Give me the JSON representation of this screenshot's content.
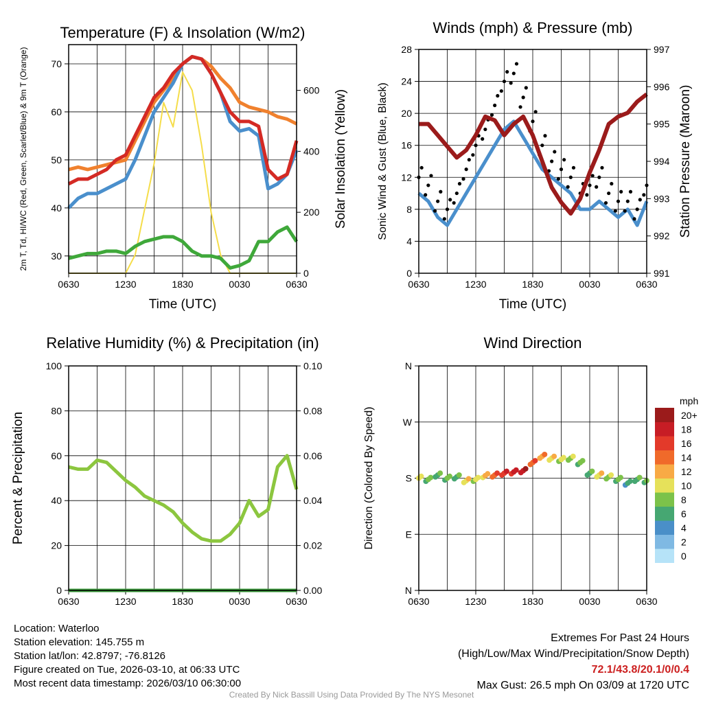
{
  "chart_data": [
    {
      "type": "line",
      "title": "Temperature (F) & Insolation (W/m2)",
      "xlabel": "Time (UTC)",
      "ylabel": "2m T, Td, HI/WC (Red, Green, Scarlet/Blue) & 9m T (Orange)",
      "ylabel2": "Solar Insolation (Yellow)",
      "ylim": [
        26.4,
        74
      ],
      "y2lim": [
        0,
        750
      ],
      "yticks": [
        30,
        40,
        50,
        60,
        70
      ],
      "y2ticks": [
        0,
        200,
        400,
        600
      ],
      "xticks": [
        "0630",
        "1230",
        "1830",
        "0030",
        "0630"
      ],
      "x_hours": [
        0,
        1,
        2,
        3,
        4,
        5,
        6,
        7,
        8,
        9,
        10,
        11,
        12,
        13,
        14,
        15,
        16,
        17,
        18,
        19,
        20,
        21,
        22,
        23,
        24
      ],
      "series": [
        {
          "name": "Solar Insolation",
          "axis": "right",
          "color": "#f5dd4a",
          "values": [
            0,
            0,
            0,
            0,
            0,
            0,
            0,
            60,
            210,
            360,
            560,
            480,
            660,
            600,
            420,
            200,
            60,
            0,
            0,
            0,
            0,
            0,
            0,
            0,
            0
          ]
        },
        {
          "name": "Dewpoint",
          "color": "#3fa83a",
          "values": [
            29.5,
            30,
            30.5,
            30.5,
            31,
            31,
            30.5,
            32,
            33,
            33.5,
            34,
            34,
            33,
            31,
            30,
            30,
            29.5,
            27.5,
            28,
            29,
            33,
            33,
            35,
            36,
            33
          ]
        },
        {
          "name": "9m Temperature",
          "color": "#f0812e",
          "values": [
            48,
            48.5,
            48,
            48.5,
            49,
            49.5,
            50,
            54,
            58,
            62,
            64.5,
            67,
            70,
            71.5,
            71,
            69.5,
            67,
            65,
            62,
            61,
            60.5,
            60,
            59,
            58.5,
            57.5
          ]
        },
        {
          "name": "Wind Chill",
          "color": "#4a8fcc",
          "values": [
            40,
            42,
            43,
            43,
            44,
            45,
            46,
            50,
            55,
            60,
            63,
            66,
            70,
            71.5,
            71,
            68,
            64,
            58,
            56,
            56.5,
            55,
            44,
            45,
            47,
            52
          ]
        },
        {
          "name": "2m Temperature",
          "color": "#d42a24",
          "values": [
            45,
            46,
            46,
            47,
            48,
            50,
            51,
            55,
            59,
            63,
            65,
            68,
            70,
            71.5,
            71,
            68,
            64,
            60,
            58,
            58,
            57,
            48,
            46,
            47,
            54
          ]
        }
      ]
    },
    {
      "type": "line",
      "title": "Winds (mph) & Pressure (mb)",
      "xlabel": "Time (UTC)",
      "ylabel": "Sonic Wind & Gust (Blue, Black)",
      "ylabel2": "Station Pressure (Maroon)",
      "ylim": [
        0,
        28
      ],
      "y2lim": [
        991,
        997
      ],
      "yticks": [
        0,
        4,
        8,
        12,
        16,
        20,
        24,
        28
      ],
      "y2ticks": [
        991,
        992,
        993,
        994,
        995,
        996,
        997
      ],
      "xticks": [
        "0630",
        "1230",
        "1830",
        "0030",
        "0630"
      ],
      "x_hours": [
        0,
        1,
        2,
        3,
        4,
        5,
        6,
        7,
        8,
        9,
        10,
        11,
        12,
        13,
        14,
        15,
        16,
        17,
        18,
        19,
        20,
        21,
        22,
        23,
        24
      ],
      "series": [
        {
          "name": "Sonic Wind",
          "color": "#4a8fcc",
          "values": [
            10,
            9,
            7,
            6,
            8,
            10,
            12,
            14,
            16,
            18,
            19,
            17,
            15,
            13,
            12,
            11,
            10,
            8,
            8,
            9,
            8,
            7,
            8,
            6,
            9
          ]
        },
        {
          "name": "Gust",
          "type": "scatter",
          "color": "#000000",
          "values": [
            12,
            11,
            9,
            8,
            10,
            13,
            16,
            18,
            21,
            24,
            25,
            22,
            19,
            16,
            14,
            13,
            12,
            10,
            11,
            12,
            10,
            9,
            9,
            8,
            11
          ]
        },
        {
          "name": "Station Pressure",
          "axis": "right",
          "color": "#9b1b1b",
          "values": [
            995,
            995,
            994.7,
            994.4,
            994.1,
            994.3,
            994.7,
            995.2,
            995.1,
            994.7,
            995,
            995.2,
            994.7,
            994,
            993.3,
            992.9,
            992.6,
            993,
            993.7,
            994.3,
            995,
            995.2,
            995.3,
            995.6,
            995.8
          ]
        }
      ]
    },
    {
      "type": "line",
      "title": "Relative Humidity (%) & Precipitation (in)",
      "xlabel": "",
      "ylabel": "Percent & Precipitation",
      "ylim": [
        0,
        100
      ],
      "y2lim": [
        0,
        0.1
      ],
      "yticks": [
        0,
        20,
        40,
        60,
        80,
        100
      ],
      "y2ticks": [
        "0.00",
        "0.02",
        "0.04",
        "0.06",
        "0.08",
        "0.10"
      ],
      "xticks": [
        "0630",
        "1230",
        "1830",
        "0030",
        "0630"
      ],
      "x_hours": [
        0,
        1,
        2,
        3,
        4,
        5,
        6,
        7,
        8,
        9,
        10,
        11,
        12,
        13,
        14,
        15,
        16,
        17,
        18,
        19,
        20,
        21,
        22,
        23,
        24
      ],
      "series": [
        {
          "name": "Relative Humidity",
          "color": "#8cc63f",
          "values": [
            55,
            54,
            54,
            58,
            57,
            53,
            49,
            46,
            42,
            40,
            38,
            35,
            30,
            26,
            23,
            22,
            22,
            25,
            30,
            40,
            33,
            36,
            55,
            60,
            45
          ]
        },
        {
          "name": "Precipitation",
          "axis": "right",
          "color": "#3a9a3a",
          "values": [
            0,
            0,
            0,
            0,
            0,
            0,
            0,
            0,
            0,
            0,
            0,
            0,
            0,
            0,
            0,
            0,
            0,
            0,
            0,
            0,
            0,
            0,
            0,
            0,
            0
          ]
        }
      ]
    },
    {
      "type": "scatter",
      "title": "Wind Direction",
      "xlabel": "",
      "ylabel": "Direction (Colored By Speed)",
      "ylim": [
        0,
        360
      ],
      "yticks": [
        "N",
        "E",
        "S",
        "W",
        "N"
      ],
      "xticks": [
        "0630",
        "1230",
        "1830",
        "0030",
        "0630"
      ],
      "x_hours": [
        0,
        1,
        2,
        3,
        4,
        5,
        6,
        7,
        8,
        9,
        10,
        11,
        12,
        13,
        14,
        15,
        16,
        17,
        18,
        19,
        20,
        21,
        22,
        23,
        24
      ],
      "direction": [
        180,
        178,
        185,
        180,
        182,
        176,
        178,
        184,
        185,
        188,
        190,
        192,
        205,
        215,
        212,
        210,
        212,
        205,
        188,
        185,
        182,
        178,
        172,
        178,
        176
      ],
      "speed": [
        9,
        7,
        6,
        7,
        6,
        10,
        9,
        11,
        14,
        16,
        17,
        18,
        14,
        12,
        10,
        9,
        8,
        7,
        6,
        10,
        8,
        7,
        5,
        6,
        7
      ],
      "colorbar": {
        "title": "mph",
        "labels": [
          "0",
          "2",
          "4",
          "6",
          "8",
          "10",
          "12",
          "14",
          "16",
          "18",
          "20+"
        ],
        "colors": [
          "#b6e3f8",
          "#7fb9e3",
          "#4a8fc8",
          "#46a772",
          "#7cc24a",
          "#e6e15a",
          "#f8aa45",
          "#f06a2a",
          "#e33a2a",
          "#c71d25",
          "#9b1b1b"
        ]
      }
    }
  ],
  "info": {
    "location": "Location: Waterloo",
    "elevation": "Station elevation: 145.755 m",
    "latlon": "Station lat/lon: 42.8797; -76.8126",
    "created": "Figure created on Tue, 2026-03-10, at 06:33 UTC",
    "recent": "Most recent data timestamp: 2026/03/10 06:30:00"
  },
  "extremes": {
    "title": "Extremes For Past 24 Hours",
    "subtitle": "(High/Low/Max Wind/Precipitation/Snow Depth)",
    "values": "72.1/43.8/20.1/0/0.4",
    "gust": "Max Gust: 26.5 mph On 03/09 at 1720 UTC"
  },
  "credit": "Created By Nick Bassill Using Data Provided By The NYS Mesonet"
}
